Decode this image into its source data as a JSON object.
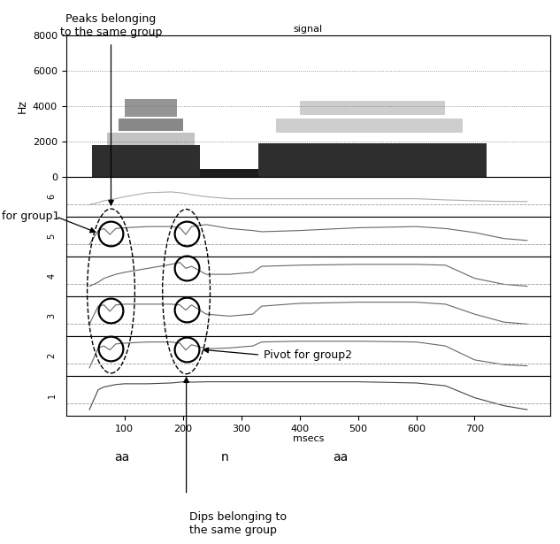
{
  "chart_data": {
    "type": "spectrogram",
    "title": "signal",
    "y_label": "Hz",
    "x_label": "msecs",
    "xlim": [
      0,
      830
    ],
    "xticks": [
      100,
      200,
      300,
      400,
      500,
      600,
      700
    ],
    "ylim": [
      0,
      8000
    ],
    "yticks": [
      0,
      2000,
      4000,
      6000,
      8000
    ],
    "grid": true,
    "bands": [
      {
        "t": [
          45,
          230
        ],
        "f": [
          0,
          1800
        ],
        "level": 0.85
      },
      {
        "t": [
          70,
          220
        ],
        "f": [
          1800,
          2500
        ],
        "level": 0.35
      },
      {
        "t": [
          90,
          200
        ],
        "f": [
          2600,
          3300
        ],
        "level": 0.55
      },
      {
        "t": [
          100,
          190
        ],
        "f": [
          3400,
          4400
        ],
        "level": 0.5
      },
      {
        "t": [
          230,
          330
        ],
        "f": [
          0,
          450
        ],
        "level": 0.9
      },
      {
        "t": [
          330,
          720
        ],
        "f": [
          0,
          1900
        ],
        "level": 0.85
      },
      {
        "t": [
          360,
          680
        ],
        "f": [
          2500,
          3300
        ],
        "level": 0.3
      },
      {
        "t": [
          400,
          650
        ],
        "f": [
          3500,
          4300
        ],
        "level": 0.3
      }
    ],
    "channel_ylim": [
      0,
      1
    ],
    "channels": [
      {
        "name": "6",
        "color": "#aaaaaa",
        "baseline": 0.3,
        "x": [
          40,
          55,
          65,
          75,
          85,
          100,
          140,
          180,
          195,
          205,
          215,
          240,
          280,
          320,
          335,
          400,
          500,
          600,
          650,
          700,
          750,
          790
        ],
        "values": [
          0.3,
          0.35,
          0.4,
          0.42,
          0.45,
          0.5,
          0.6,
          0.62,
          0.6,
          0.58,
          0.55,
          0.5,
          0.45,
          0.45,
          0.45,
          0.45,
          0.45,
          0.45,
          0.42,
          0.4,
          0.38,
          0.38
        ]
      },
      {
        "name": "5",
        "color": "#666666",
        "baseline": 0.3,
        "x": [
          40,
          55,
          65,
          75,
          85,
          100,
          140,
          180,
          195,
          205,
          215,
          240,
          280,
          320,
          335,
          400,
          500,
          600,
          650,
          700,
          750,
          790
        ],
        "values": [
          0.3,
          0.65,
          0.7,
          0.55,
          0.7,
          0.72,
          0.75,
          0.75,
          0.72,
          0.55,
          0.75,
          0.8,
          0.7,
          0.65,
          0.62,
          0.65,
          0.72,
          0.75,
          0.7,
          0.6,
          0.45,
          0.4
        ]
      },
      {
        "name": "4",
        "color": "#666666",
        "baseline": 0.3,
        "x": [
          40,
          55,
          65,
          75,
          85,
          100,
          140,
          180,
          195,
          205,
          215,
          240,
          280,
          320,
          335,
          400,
          500,
          600,
          650,
          700,
          750,
          790
        ],
        "values": [
          0.25,
          0.35,
          0.45,
          0.5,
          0.55,
          0.6,
          0.7,
          0.8,
          0.85,
          0.7,
          0.75,
          0.55,
          0.55,
          0.6,
          0.75,
          0.78,
          0.8,
          0.8,
          0.78,
          0.45,
          0.3,
          0.25
        ]
      },
      {
        "name": "3",
        "color": "#666666",
        "baseline": 0.3,
        "x": [
          40,
          55,
          65,
          75,
          85,
          100,
          140,
          180,
          195,
          205,
          215,
          240,
          280,
          320,
          335,
          400,
          500,
          600,
          650,
          700,
          750,
          790
        ],
        "values": [
          0.3,
          0.75,
          0.78,
          0.62,
          0.78,
          0.8,
          0.8,
          0.8,
          0.78,
          0.65,
          0.78,
          0.55,
          0.5,
          0.55,
          0.75,
          0.82,
          0.85,
          0.85,
          0.8,
          0.55,
          0.35,
          0.3
        ]
      },
      {
        "name": "2",
        "color": "#666666",
        "baseline": 0.3,
        "x": [
          40,
          55,
          65,
          75,
          85,
          100,
          140,
          180,
          195,
          205,
          215,
          240,
          280,
          320,
          335,
          400,
          500,
          600,
          650,
          700,
          750,
          790
        ],
        "values": [
          0.2,
          0.7,
          0.75,
          0.65,
          0.8,
          0.82,
          0.85,
          0.85,
          0.82,
          0.65,
          0.78,
          0.68,
          0.7,
          0.75,
          0.85,
          0.87,
          0.87,
          0.85,
          0.75,
          0.4,
          0.28,
          0.25
        ]
      },
      {
        "name": "1",
        "color": "#444444",
        "baseline": 0.3,
        "x": [
          40,
          55,
          65,
          75,
          85,
          100,
          140,
          180,
          195,
          205,
          215,
          240,
          280,
          320,
          335,
          400,
          500,
          600,
          650,
          700,
          750,
          790
        ],
        "values": [
          0.15,
          0.65,
          0.72,
          0.75,
          0.78,
          0.8,
          0.8,
          0.82,
          0.84,
          0.86,
          0.84,
          0.85,
          0.85,
          0.85,
          0.85,
          0.85,
          0.85,
          0.82,
          0.75,
          0.45,
          0.25,
          0.15
        ]
      }
    ],
    "segments": [
      {
        "label": "aa",
        "x": 95
      },
      {
        "label": "n",
        "x": 272
      },
      {
        "label": "aa",
        "x": 470
      }
    ],
    "groups": [
      {
        "x": 77,
        "channels": [
          "5",
          "3",
          "2"
        ],
        "pivot": "5",
        "pivot_text": "for group1",
        "note": "Peaks belonging\nto the same group"
      },
      {
        "x": 206,
        "channels": [
          "5",
          "4",
          "3",
          "2"
        ],
        "pivot": "2",
        "pivot_text": "Pivot for group2",
        "note": "Dips belonging to\nthe same group"
      }
    ]
  }
}
